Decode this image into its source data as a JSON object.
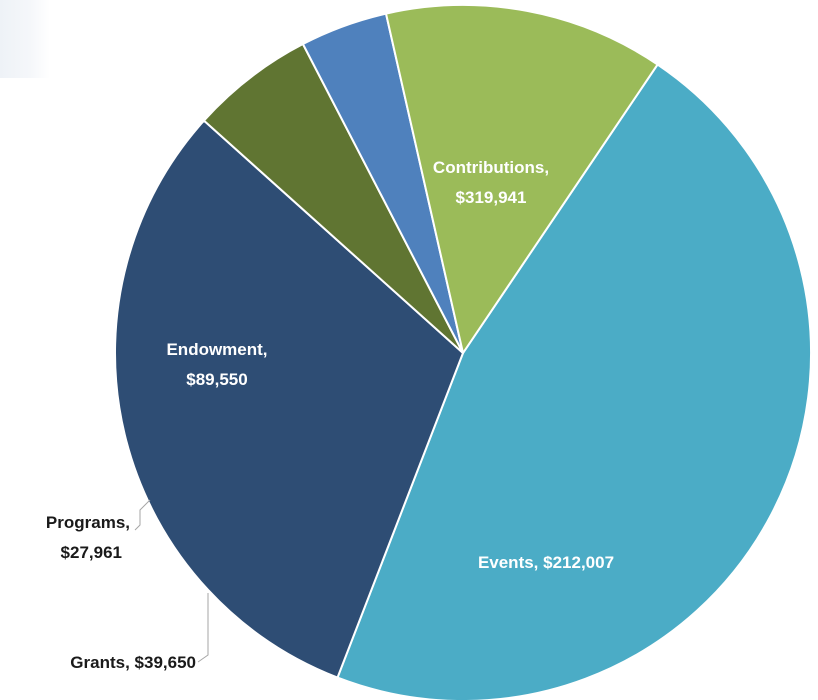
{
  "chart_data": {
    "type": "pie",
    "title": "",
    "slices": [
      {
        "category": "Contributions",
        "value": 319941,
        "label_line1": "Contributions,",
        "label_line2": "$319,941",
        "color": "#4bacc6"
      },
      {
        "category": "Events",
        "value": 212007,
        "label_line1": "Events, $212,007",
        "label_line2": "",
        "color": "#2e4d74"
      },
      {
        "category": "Grants",
        "value": 39650,
        "label_line1": "Grants, $39,650",
        "label_line2": "",
        "color": "#607532"
      },
      {
        "category": "Programs",
        "value": 27961,
        "label_line1": "Programs,",
        "label_line2": "$27,961",
        "color": "#4f81bd"
      },
      {
        "category": "Endowment",
        "value": 89550,
        "label_line1": "Endowment,",
        "label_line2": "$89,550",
        "color": "#9bbb59"
      }
    ],
    "legend": "none",
    "start_angle_deg": -56
  }
}
